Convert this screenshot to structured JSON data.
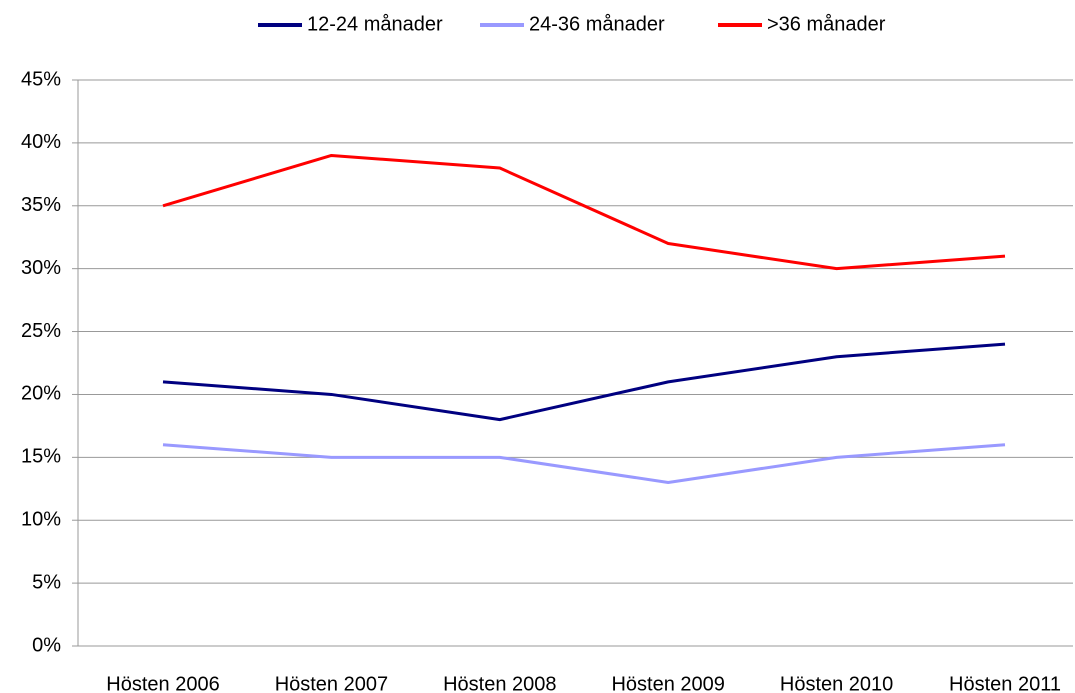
{
  "chart_data": {
    "type": "line",
    "categories": [
      "Hösten 2006",
      "Hösten 2007",
      "Hösten 2008",
      "Hösten 2009",
      "Hösten 2010",
      "Hösten 2011"
    ],
    "series": [
      {
        "name": "12-24 månader",
        "color": "#000080",
        "values": [
          21,
          20,
          18,
          21,
          23,
          24
        ]
      },
      {
        "name": "24-36 månader",
        "color": "#9999ff",
        "values": [
          16,
          15,
          15,
          13,
          15,
          16
        ]
      },
      {
        "name": ">36 månader",
        "color": "#ff0000",
        "values": [
          35,
          39,
          38,
          32,
          30,
          31
        ]
      }
    ],
    "ylim": [
      0,
      45
    ],
    "yticks": [
      {
        "value": 0,
        "label": "0%"
      },
      {
        "value": 5,
        "label": "5%"
      },
      {
        "value": 10,
        "label": "10%"
      },
      {
        "value": 15,
        "label": "15%"
      },
      {
        "value": 20,
        "label": "20%"
      },
      {
        "value": 25,
        "label": "25%"
      },
      {
        "value": 30,
        "label": "30%"
      },
      {
        "value": 35,
        "label": "35%"
      },
      {
        "value": 40,
        "label": "40%"
      },
      {
        "value": 45,
        "label": "45%"
      }
    ],
    "grid": true,
    "legend": "top"
  }
}
